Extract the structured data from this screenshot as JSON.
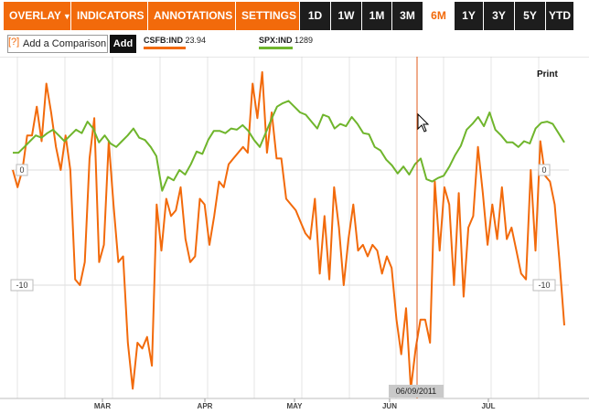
{
  "toolbar": {
    "menus": [
      {
        "label": "OVERLAY"
      },
      {
        "label": "INDICATORS"
      },
      {
        "label": "ANNOTATIONS"
      },
      {
        "label": "SETTINGS"
      }
    ],
    "caret": "▼",
    "ranges": [
      {
        "label": "1D",
        "active": false
      },
      {
        "label": "1W",
        "active": false
      },
      {
        "label": "1M",
        "active": false
      },
      {
        "label": "3M",
        "active": false
      },
      {
        "label": "6M",
        "active": true
      },
      {
        "label": "1Y",
        "active": false
      },
      {
        "label": "3Y",
        "active": false
      },
      {
        "label": "5Y",
        "active": false
      },
      {
        "label": "YTD",
        "active": false
      }
    ]
  },
  "comparison": {
    "help_label": "[?]",
    "placeholder": "Add a Comparison",
    "value": "",
    "add_label": "Add"
  },
  "legend": [
    {
      "ticker": "CSFB:IND",
      "value": "23.94",
      "color": "#f26a0b"
    },
    {
      "ticker": "SPX:IND",
      "value": "1289",
      "color": "#6fb52c"
    }
  ],
  "print_label": "Print",
  "crosshair": {
    "date": "06/09/2011"
  },
  "chart_data": {
    "type": "line",
    "months": [
      "MAR",
      "APR",
      "MAY",
      "JUN",
      "JUL"
    ],
    "y_tick_labels": [
      "0",
      "-10"
    ],
    "ylim": [
      -20,
      8.5
    ],
    "grid": true,
    "series": [
      {
        "name": "CSFB:IND",
        "color": "#f26a0b",
        "values": [
          0,
          -1.5,
          0,
          3,
          3,
          5.5,
          2.5,
          7.5,
          5,
          2,
          0,
          3,
          0,
          -9.5,
          -10,
          -8,
          1,
          4.5,
          -8,
          -6.5,
          2.5,
          -3,
          -8,
          -7.5,
          -15,
          -19,
          -15,
          -15.5,
          -14.5,
          -17,
          -3,
          -7,
          -2.5,
          -4,
          -3.5,
          -1.5,
          -6,
          -8,
          -7.5,
          -2.5,
          -3,
          -6.5,
          -4,
          -1,
          -1.5,
          0.5,
          1,
          1.5,
          2,
          1.5,
          7.5,
          4.5,
          8.5,
          1.5,
          5,
          1,
          1,
          -2.5,
          -3,
          -3.5,
          -4.5,
          -5.5,
          -6,
          -2.5,
          -9,
          -4,
          -9.5,
          -1.5,
          -5,
          -10,
          -6,
          -3,
          -7,
          -6.5,
          -7.5,
          -6.5,
          -7,
          -9,
          -7.5,
          -8.5,
          -13,
          -16,
          -12,
          -19,
          -15.5,
          -13,
          -13,
          -15,
          -1,
          -7,
          -1.5,
          -3,
          -10,
          -2,
          -11,
          -5,
          -4,
          2,
          -2,
          -6.5,
          -3,
          -6,
          -1.5,
          -6,
          -5,
          -7,
          -9,
          -9.5,
          0,
          -7,
          2.5,
          -0.5,
          -1,
          -3,
          -8,
          -13.5
        ],
        "note": ""
      },
      {
        "name": "SPX:IND",
        "color": "#6fb52c",
        "values": [
          1.5,
          1.5,
          2,
          2.5,
          3,
          2.8,
          3.2,
          3.5,
          3,
          2.5,
          3,
          3.5,
          3.2,
          4.2,
          3.6,
          2.4,
          3,
          2.3,
          2,
          2.5,
          3,
          3.6,
          2.8,
          2.6,
          2,
          1.2,
          -1.8,
          -0.6,
          -0.9,
          0,
          -0.4,
          0.5,
          1.6,
          1.4,
          2.6,
          3.4,
          3.4,
          3.2,
          3.6,
          3.5,
          3.9,
          3.4,
          2.6,
          2,
          3.2,
          4.4,
          5.5,
          5.8,
          6,
          5.5,
          5,
          4.8,
          4.2,
          3.6,
          4.8,
          4.6,
          3.6,
          4,
          3.8,
          4.6,
          4,
          3.2,
          3.1,
          2,
          1.7,
          0.9,
          0.4,
          -0.3,
          0.3,
          -0.4,
          0.5,
          1,
          -0.8,
          -1,
          -0.7,
          -0.5,
          0.3,
          1.3,
          2.1,
          3.5,
          4,
          4.6,
          3.8,
          5,
          3.5,
          3,
          2.4,
          2.4,
          2,
          2.5,
          2.3,
          3.6,
          4.1,
          4.2,
          4,
          3.2,
          2.4
        ]
      }
    ]
  }
}
